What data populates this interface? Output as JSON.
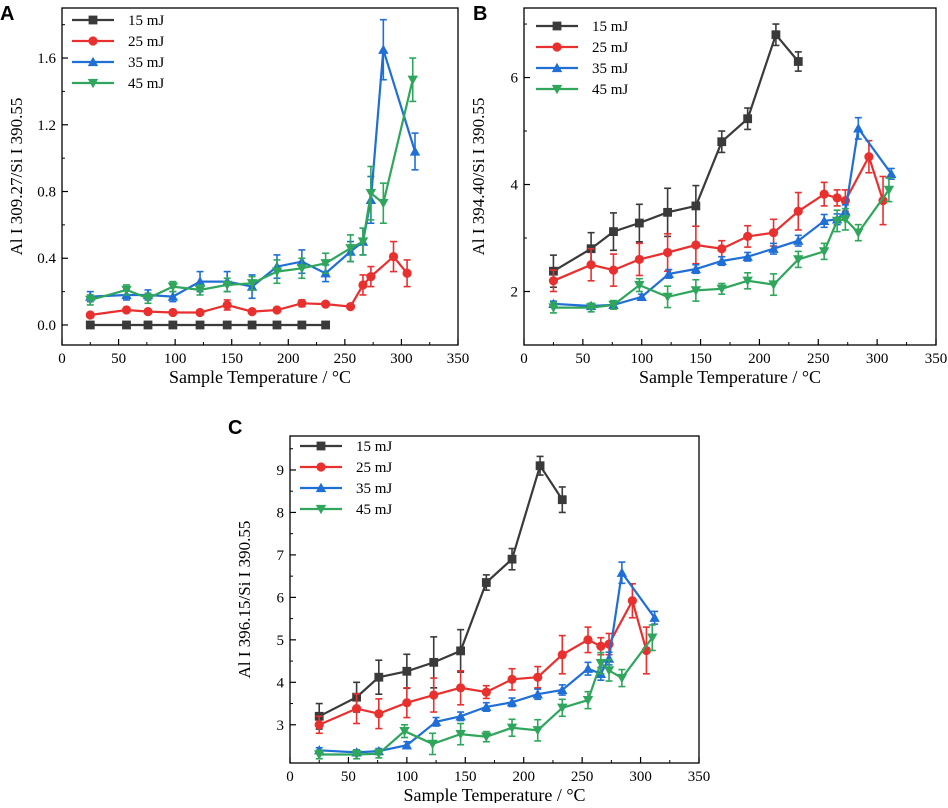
{
  "chart_data": [
    {
      "panel": "A",
      "type": "line",
      "xlabel": "Sample Temperature / °C",
      "ylabel": "Al I 309.27/Si I 390.55",
      "xlim": [
        0,
        350
      ],
      "ylim": [
        -0.12,
        1.9
      ],
      "xticks": [
        0,
        50,
        100,
        150,
        200,
        250,
        300,
        350
      ],
      "yticks": [
        0.0,
        0.4,
        0.8,
        1.2,
        1.6
      ],
      "ytick_labels": [
        "0.0",
        "0.4",
        "0.8",
        "1.2",
        "1.6"
      ],
      "legend_position": "top-left",
      "series": [
        {
          "name": "15 mJ",
          "color": "#3a3a3a",
          "marker": "square",
          "x": [
            25,
            57,
            76,
            98,
            122,
            146,
            168,
            190,
            212,
            233
          ],
          "y": [
            0.0,
            0.0,
            0.0,
            0.0,
            0.0,
            0.0,
            0.0,
            0.0,
            0.0,
            0.0
          ],
          "err": [
            0,
            0,
            0,
            0,
            0,
            0,
            0,
            0,
            0,
            0
          ]
        },
        {
          "name": "25 mJ",
          "color": "#e8302e",
          "marker": "circle",
          "x": [
            25,
            57,
            76,
            98,
            122,
            146,
            168,
            190,
            212,
            233,
            255,
            266,
            273,
            293,
            305
          ],
          "y": [
            0.06,
            0.09,
            0.08,
            0.075,
            0.075,
            0.12,
            0.08,
            0.09,
            0.13,
            0.125,
            0.11,
            0.24,
            0.29,
            0.41,
            0.31
          ],
          "err": [
            0.01,
            0.01,
            0.01,
            0.01,
            0.01,
            0.03,
            0.01,
            0.01,
            0.02,
            0.01,
            0.01,
            0.06,
            0.06,
            0.09,
            0.08
          ]
        },
        {
          "name": "35 mJ",
          "color": "#1f6fd6",
          "marker": "triangle-up",
          "x": [
            25,
            57,
            76,
            98,
            122,
            146,
            168,
            190,
            212,
            233,
            255,
            266,
            273,
            284,
            312
          ],
          "y": [
            0.17,
            0.18,
            0.18,
            0.17,
            0.26,
            0.26,
            0.23,
            0.35,
            0.38,
            0.31,
            0.44,
            0.5,
            0.75,
            1.65,
            1.04
          ],
          "err": [
            0.03,
            0.03,
            0.03,
            0.03,
            0.06,
            0.06,
            0.07,
            0.07,
            0.07,
            0.05,
            0.06,
            0.08,
            0.14,
            0.18,
            0.11
          ]
        },
        {
          "name": "45 mJ",
          "color": "#2fa65c",
          "marker": "triangle-down",
          "x": [
            25,
            57,
            76,
            98,
            122,
            146,
            168,
            190,
            212,
            233,
            255,
            266,
            273,
            284,
            310
          ],
          "y": [
            0.15,
            0.21,
            0.16,
            0.23,
            0.21,
            0.24,
            0.25,
            0.32,
            0.34,
            0.37,
            0.46,
            0.5,
            0.79,
            0.73,
            1.47
          ],
          "err": [
            0.03,
            0.03,
            0.03,
            0.03,
            0.03,
            0.04,
            0.04,
            0.07,
            0.06,
            0.06,
            0.08,
            0.08,
            0.16,
            0.12,
            0.13
          ]
        }
      ]
    },
    {
      "panel": "B",
      "type": "line",
      "xlabel": "Sample Temperature / °C",
      "ylabel": "Al I 394.40/Si I 390.55",
      "xlim": [
        0,
        350
      ],
      "ylim": [
        1.0,
        7.3
      ],
      "xticks": [
        0,
        50,
        100,
        150,
        200,
        250,
        300,
        350
      ],
      "yticks": [
        2,
        4,
        6
      ],
      "ytick_labels": [
        "2",
        "4",
        "6"
      ],
      "legend_position": "top-left",
      "series": [
        {
          "name": "15 mJ",
          "color": "#3a3a3a",
          "marker": "square",
          "x": [
            25,
            57,
            76,
            98,
            122,
            146,
            168,
            190,
            214,
            233
          ],
          "y": [
            2.38,
            2.8,
            3.12,
            3.28,
            3.48,
            3.6,
            4.8,
            5.23,
            6.8,
            6.3
          ],
          "err": [
            0.3,
            0.3,
            0.35,
            0.35,
            0.45,
            0.38,
            0.2,
            0.2,
            0.2,
            0.18
          ]
        },
        {
          "name": "25 mJ",
          "color": "#e8302e",
          "marker": "circle",
          "x": [
            25,
            57,
            76,
            98,
            122,
            146,
            168,
            190,
            212,
            233,
            255,
            266,
            273,
            293,
            305
          ],
          "y": [
            2.2,
            2.5,
            2.4,
            2.6,
            2.73,
            2.87,
            2.8,
            3.03,
            3.1,
            3.5,
            3.82,
            3.75,
            3.7,
            4.52,
            3.7
          ],
          "err": [
            0.2,
            0.3,
            0.3,
            0.3,
            0.35,
            0.35,
            0.15,
            0.2,
            0.25,
            0.35,
            0.22,
            0.15,
            0.2,
            0.3,
            0.45
          ]
        },
        {
          "name": "35 mJ",
          "color": "#1f6fd6",
          "marker": "triangle-up",
          "x": [
            25,
            57,
            76,
            100,
            123,
            146,
            168,
            190,
            212,
            233,
            255,
            266,
            273,
            284,
            312
          ],
          "y": [
            1.77,
            1.73,
            1.75,
            1.9,
            2.33,
            2.42,
            2.57,
            2.65,
            2.8,
            2.95,
            3.32,
            3.35,
            3.5,
            5.05,
            4.2
          ],
          "err": [
            0.05,
            0.05,
            0.05,
            0.05,
            0.08,
            0.08,
            0.08,
            0.08,
            0.1,
            0.1,
            0.12,
            0.1,
            0.12,
            0.2,
            0.1
          ]
        },
        {
          "name": "45 mJ",
          "color": "#2fa65c",
          "marker": "triangle-down",
          "x": [
            25,
            57,
            76,
            98,
            122,
            146,
            168,
            190,
            212,
            233,
            255,
            266,
            273,
            284,
            310
          ],
          "y": [
            1.7,
            1.7,
            1.75,
            2.12,
            1.9,
            2.02,
            2.05,
            2.2,
            2.13,
            2.6,
            2.75,
            3.32,
            3.35,
            3.1,
            3.9
          ],
          "err": [
            0.1,
            0.08,
            0.08,
            0.12,
            0.2,
            0.2,
            0.1,
            0.15,
            0.2,
            0.15,
            0.15,
            0.2,
            0.2,
            0.15,
            0.22
          ]
        }
      ]
    },
    {
      "panel": "C",
      "type": "line",
      "xlabel": "Sample Temperature / °C",
      "ylabel": "Al I 396.15/Si I 390.55",
      "xlim": [
        0,
        350
      ],
      "ylim": [
        2.1,
        9.8
      ],
      "xticks": [
        0,
        50,
        100,
        150,
        200,
        250,
        300,
        350
      ],
      "yticks": [
        3,
        4,
        5,
        6,
        7,
        8,
        9
      ],
      "ytick_labels": [
        "3",
        "4",
        "5",
        "6",
        "7",
        "8",
        "9"
      ],
      "legend_position": "top-left",
      "series": [
        {
          "name": "15 mJ",
          "color": "#3a3a3a",
          "marker": "square",
          "x": [
            25,
            57,
            76,
            100,
            123,
            146,
            168,
            190,
            214,
            233
          ],
          "y": [
            3.2,
            3.65,
            4.12,
            4.26,
            4.47,
            4.74,
            6.35,
            6.9,
            9.1,
            8.3
          ],
          "err": [
            0.3,
            0.35,
            0.4,
            0.4,
            0.6,
            0.5,
            0.18,
            0.25,
            0.22,
            0.3
          ]
        },
        {
          "name": "25 mJ",
          "color": "#e8302e",
          "marker": "circle",
          "x": [
            25,
            57,
            76,
            100,
            123,
            146,
            168,
            190,
            212,
            233,
            255,
            266,
            273,
            293,
            305
          ],
          "y": [
            3.0,
            3.38,
            3.26,
            3.52,
            3.7,
            3.87,
            3.77,
            4.07,
            4.12,
            4.65,
            5.0,
            4.85,
            4.9,
            5.92,
            4.75
          ],
          "err": [
            0.2,
            0.35,
            0.35,
            0.35,
            0.4,
            0.4,
            0.15,
            0.25,
            0.25,
            0.45,
            0.3,
            0.2,
            0.25,
            0.4,
            0.55
          ]
        },
        {
          "name": "35 mJ",
          "color": "#1f6fd6",
          "marker": "triangle-up",
          "x": [
            25,
            57,
            76,
            100,
            125,
            146,
            168,
            190,
            212,
            233,
            255,
            266,
            273,
            284,
            312
          ],
          "y": [
            2.4,
            2.35,
            2.38,
            2.52,
            3.07,
            3.2,
            3.42,
            3.53,
            3.72,
            3.82,
            4.32,
            4.2,
            4.56,
            6.58,
            5.52
          ],
          "err": [
            0.06,
            0.06,
            0.06,
            0.08,
            0.1,
            0.1,
            0.1,
            0.1,
            0.12,
            0.12,
            0.15,
            0.15,
            0.15,
            0.25,
            0.15
          ]
        },
        {
          "name": "45 mJ",
          "color": "#2fa65c",
          "marker": "triangle-down",
          "x": [
            25,
            57,
            76,
            98,
            122,
            146,
            168,
            190,
            212,
            233,
            255,
            266,
            273,
            284,
            310
          ],
          "y": [
            2.3,
            2.3,
            2.32,
            2.85,
            2.55,
            2.78,
            2.72,
            2.93,
            2.87,
            3.4,
            3.58,
            4.45,
            4.28,
            4.1,
            5.05
          ],
          "err": [
            0.1,
            0.1,
            0.1,
            0.15,
            0.25,
            0.25,
            0.12,
            0.2,
            0.25,
            0.2,
            0.2,
            0.25,
            0.25,
            0.2,
            0.3
          ]
        }
      ]
    }
  ]
}
